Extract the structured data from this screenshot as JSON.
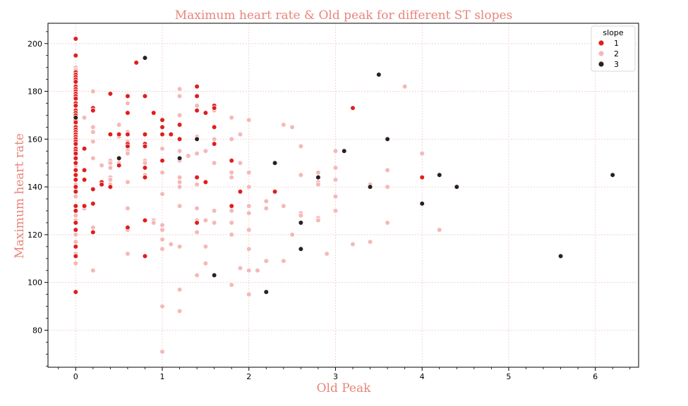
{
  "colors": {
    "title": "#e8857a",
    "grid": "#f2c9c9",
    "axis": "#000000",
    "series": [
      "#e01e1e",
      "#f5b8b8",
      "#2b1f1f"
    ]
  },
  "chart_data": {
    "type": "scatter",
    "title": "Maximum heart rate & Old peak for different ST slopes",
    "xlabel": "Old Peak",
    "ylabel": "Maximum heart rate",
    "xlim": [
      -0.32,
      6.5
    ],
    "ylim": [
      64.5,
      208.5
    ],
    "xticks": [
      0,
      1,
      2,
      3,
      4,
      5,
      6
    ],
    "yticks": [
      80,
      100,
      120,
      140,
      160,
      180,
      200
    ],
    "grid": true,
    "legend": {
      "title": "slope",
      "position": "top-right"
    },
    "series": [
      {
        "name": "1",
        "points": [
          [
            0,
            202
          ],
          [
            0,
            195
          ],
          [
            0,
            188
          ],
          [
            0,
            187
          ],
          [
            0,
            186
          ],
          [
            0,
            185
          ],
          [
            0,
            184
          ],
          [
            0,
            182
          ],
          [
            0,
            181
          ],
          [
            0,
            180
          ],
          [
            0,
            179
          ],
          [
            0,
            178
          ],
          [
            0,
            177
          ],
          [
            0,
            175
          ],
          [
            0,
            174
          ],
          [
            0,
            172
          ],
          [
            0,
            171
          ],
          [
            0,
            170
          ],
          [
            0,
            168
          ],
          [
            0,
            167
          ],
          [
            0,
            165
          ],
          [
            0,
            164
          ],
          [
            0,
            163
          ],
          [
            0,
            162
          ],
          [
            0,
            161
          ],
          [
            0,
            160
          ],
          [
            0,
            159
          ],
          [
            0,
            158
          ],
          [
            0,
            156
          ],
          [
            0,
            155
          ],
          [
            0,
            154
          ],
          [
            0,
            152
          ],
          [
            0,
            150
          ],
          [
            0,
            147
          ],
          [
            0,
            145
          ],
          [
            0,
            143
          ],
          [
            0,
            140
          ],
          [
            0,
            138
          ],
          [
            0,
            132
          ],
          [
            0,
            130
          ],
          [
            0,
            125
          ],
          [
            0,
            122
          ],
          [
            0,
            115
          ],
          [
            0,
            111
          ],
          [
            0,
            96
          ],
          [
            0.1,
            156
          ],
          [
            0.1,
            147
          ],
          [
            0.1,
            143
          ],
          [
            0.1,
            132
          ],
          [
            0.2,
            173
          ],
          [
            0.2,
            172
          ],
          [
            0.2,
            139
          ],
          [
            0.2,
            133
          ],
          [
            0.2,
            121
          ],
          [
            0.3,
            142
          ],
          [
            0.3,
            141
          ],
          [
            0.4,
            179
          ],
          [
            0.4,
            162
          ],
          [
            0.4,
            140
          ],
          [
            0.5,
            162
          ],
          [
            0.5,
            149
          ],
          [
            0.6,
            178
          ],
          [
            0.6,
            171
          ],
          [
            0.6,
            162
          ],
          [
            0.6,
            158
          ],
          [
            0.6,
            157
          ],
          [
            0.6,
            123
          ],
          [
            0.7,
            192
          ],
          [
            0.8,
            178
          ],
          [
            0.8,
            162
          ],
          [
            0.8,
            158
          ],
          [
            0.8,
            157
          ],
          [
            0.8,
            148
          ],
          [
            0.8,
            144
          ],
          [
            0.8,
            126
          ],
          [
            0.8,
            111
          ],
          [
            0.9,
            171
          ],
          [
            1.0,
            168
          ],
          [
            1.0,
            165
          ],
          [
            1.0,
            162
          ],
          [
            1.0,
            151
          ],
          [
            1.1,
            162
          ],
          [
            1.2,
            166
          ],
          [
            1.2,
            160
          ],
          [
            1.4,
            182
          ],
          [
            1.4,
            178
          ],
          [
            1.4,
            172
          ],
          [
            1.4,
            144
          ],
          [
            1.4,
            125
          ],
          [
            1.5,
            171
          ],
          [
            1.5,
            142
          ],
          [
            1.6,
            174
          ],
          [
            1.6,
            173
          ],
          [
            1.6,
            165
          ],
          [
            1.6,
            158
          ],
          [
            1.8,
            151
          ],
          [
            1.8,
            132
          ],
          [
            1.9,
            138
          ],
          [
            2.3,
            138
          ],
          [
            3.2,
            173
          ],
          [
            4.0,
            144
          ]
        ]
      },
      {
        "name": "2",
        "points": [
          [
            0,
            190
          ],
          [
            0,
            189
          ],
          [
            0,
            183
          ],
          [
            0,
            176
          ],
          [
            0,
            173
          ],
          [
            0,
            169
          ],
          [
            0,
            166
          ],
          [
            0,
            157
          ],
          [
            0,
            153
          ],
          [
            0,
            149
          ],
          [
            0,
            146
          ],
          [
            0,
            141
          ],
          [
            0,
            139
          ],
          [
            0,
            136
          ],
          [
            0,
            128
          ],
          [
            0,
            126
          ],
          [
            0,
            120
          ],
          [
            0,
            117
          ],
          [
            0,
            112
          ],
          [
            0,
            108
          ],
          [
            0.1,
            169
          ],
          [
            0.1,
            131
          ],
          [
            0.2,
            180
          ],
          [
            0.2,
            165
          ],
          [
            0.2,
            163
          ],
          [
            0.2,
            159
          ],
          [
            0.2,
            152
          ],
          [
            0.2,
            123
          ],
          [
            0.2,
            105
          ],
          [
            0.3,
            149
          ],
          [
            0.4,
            151
          ],
          [
            0.4,
            150
          ],
          [
            0.4,
            148
          ],
          [
            0.4,
            144
          ],
          [
            0.4,
            143
          ],
          [
            0.4,
            141
          ],
          [
            0.5,
            166
          ],
          [
            0.5,
            161
          ],
          [
            0.5,
            150
          ],
          [
            0.6,
            175
          ],
          [
            0.6,
            163
          ],
          [
            0.6,
            159
          ],
          [
            0.6,
            156
          ],
          [
            0.6,
            155
          ],
          [
            0.6,
            154
          ],
          [
            0.6,
            142
          ],
          [
            0.6,
            131
          ],
          [
            0.6,
            122
          ],
          [
            0.6,
            112
          ],
          [
            0.8,
            151
          ],
          [
            0.8,
            150
          ],
          [
            0.8,
            145
          ],
          [
            0.9,
            126
          ],
          [
            0.9,
            125
          ],
          [
            1.0,
            162
          ],
          [
            1.0,
            156
          ],
          [
            1.0,
            146
          ],
          [
            1.0,
            137
          ],
          [
            1.0,
            124
          ],
          [
            1.0,
            122
          ],
          [
            1.0,
            118
          ],
          [
            1.0,
            114
          ],
          [
            1.0,
            90
          ],
          [
            1.0,
            71
          ],
          [
            1.1,
            116
          ],
          [
            1.2,
            181
          ],
          [
            1.2,
            178
          ],
          [
            1.2,
            170
          ],
          [
            1.2,
            155
          ],
          [
            1.2,
            151
          ],
          [
            1.2,
            144
          ],
          [
            1.2,
            142
          ],
          [
            1.2,
            140
          ],
          [
            1.2,
            132
          ],
          [
            1.2,
            115
          ],
          [
            1.2,
            97
          ],
          [
            1.2,
            88
          ],
          [
            1.3,
            153
          ],
          [
            1.4,
            174
          ],
          [
            1.4,
            161
          ],
          [
            1.4,
            154
          ],
          [
            1.4,
            141
          ],
          [
            1.4,
            131
          ],
          [
            1.4,
            126
          ],
          [
            1.4,
            121
          ],
          [
            1.4,
            103
          ],
          [
            1.5,
            155
          ],
          [
            1.5,
            126
          ],
          [
            1.5,
            115
          ],
          [
            1.5,
            108
          ],
          [
            1.6,
            172
          ],
          [
            1.6,
            160
          ],
          [
            1.6,
            150
          ],
          [
            1.6,
            130
          ],
          [
            1.6,
            125
          ],
          [
            1.8,
            169
          ],
          [
            1.8,
            160
          ],
          [
            1.8,
            146
          ],
          [
            1.8,
            144
          ],
          [
            1.8,
            132
          ],
          [
            1.8,
            130
          ],
          [
            1.8,
            125
          ],
          [
            1.8,
            120
          ],
          [
            1.8,
            99
          ],
          [
            1.9,
            162
          ],
          [
            1.9,
            150
          ],
          [
            1.9,
            106
          ],
          [
            2.0,
            168
          ],
          [
            2.0,
            146
          ],
          [
            2.0,
            140
          ],
          [
            2.0,
            132
          ],
          [
            2.0,
            129
          ],
          [
            2.0,
            122
          ],
          [
            2.0,
            114
          ],
          [
            2.0,
            105
          ],
          [
            2.0,
            95
          ],
          [
            2.1,
            105
          ],
          [
            2.2,
            134
          ],
          [
            2.2,
            131
          ],
          [
            2.2,
            109
          ],
          [
            2.3,
            150
          ],
          [
            2.4,
            166
          ],
          [
            2.4,
            132
          ],
          [
            2.4,
            109
          ],
          [
            2.5,
            165
          ],
          [
            2.5,
            120
          ],
          [
            2.6,
            157
          ],
          [
            2.6,
            145
          ],
          [
            2.6,
            129
          ],
          [
            2.6,
            128
          ],
          [
            2.8,
            146
          ],
          [
            2.8,
            144
          ],
          [
            2.8,
            142
          ],
          [
            2.8,
            141
          ],
          [
            2.8,
            127
          ],
          [
            2.8,
            126
          ],
          [
            2.9,
            112
          ],
          [
            3.0,
            155
          ],
          [
            3.0,
            148
          ],
          [
            3.0,
            143
          ],
          [
            3.0,
            136
          ],
          [
            3.0,
            130
          ],
          [
            3.2,
            116
          ],
          [
            3.4,
            141
          ],
          [
            3.4,
            117
          ],
          [
            3.6,
            147
          ],
          [
            3.6,
            140
          ],
          [
            3.6,
            125
          ],
          [
            3.8,
            182
          ],
          [
            4.0,
            154
          ],
          [
            4.2,
            122
          ]
        ]
      },
      {
        "name": "3",
        "points": [
          [
            0,
            169
          ],
          [
            0.5,
            152
          ],
          [
            0.8,
            194
          ],
          [
            1.2,
            152
          ],
          [
            1.4,
            160
          ],
          [
            1.6,
            103
          ],
          [
            2.2,
            96
          ],
          [
            2.3,
            150
          ],
          [
            2.6,
            125
          ],
          [
            2.6,
            114
          ],
          [
            2.8,
            144
          ],
          [
            3.1,
            155
          ],
          [
            3.4,
            140
          ],
          [
            3.5,
            187
          ],
          [
            3.6,
            160
          ],
          [
            4.0,
            133
          ],
          [
            4.2,
            145
          ],
          [
            4.4,
            140
          ],
          [
            5.6,
            111
          ],
          [
            6.2,
            145
          ]
        ]
      }
    ]
  }
}
